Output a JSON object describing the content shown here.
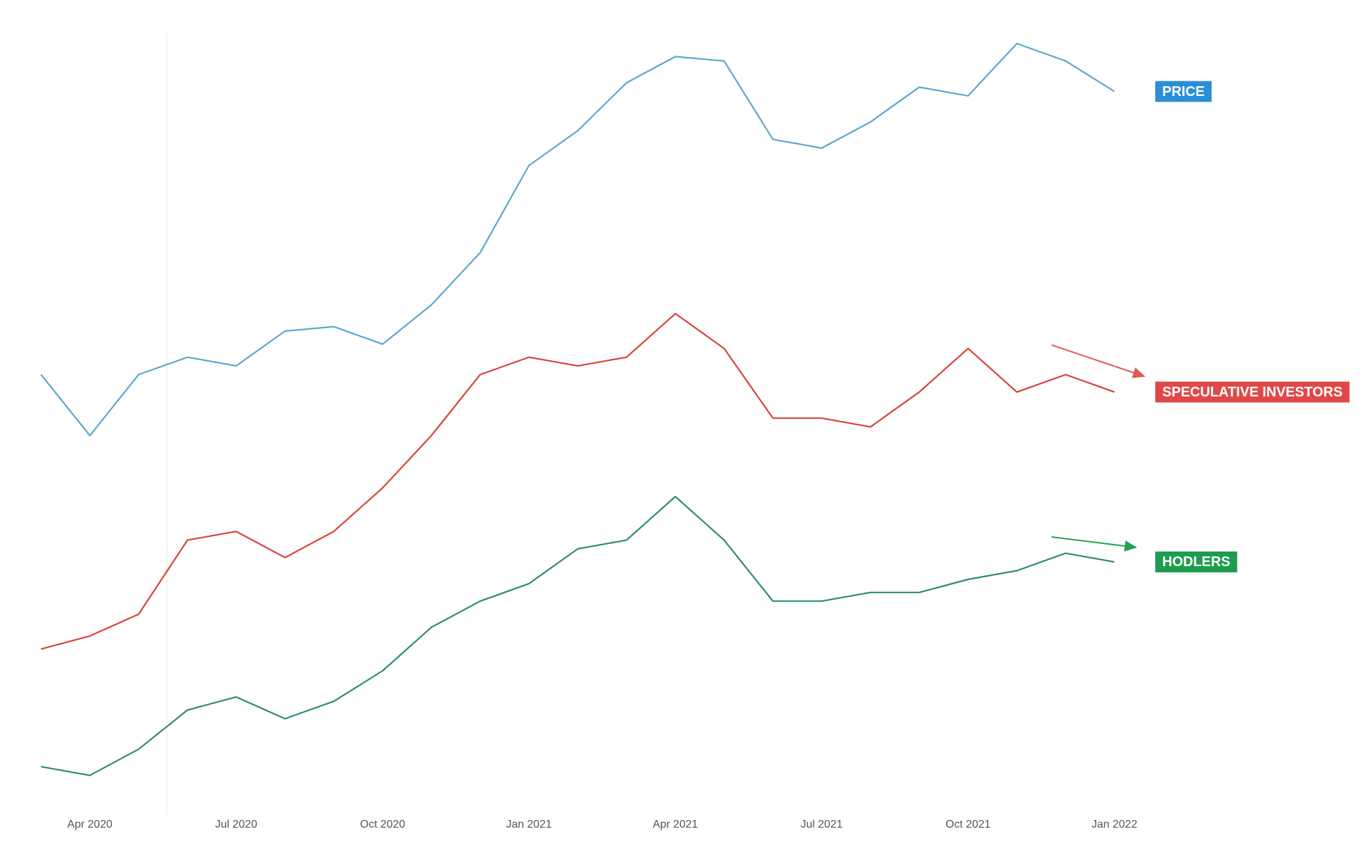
{
  "chart_data": {
    "type": "line",
    "x": [
      "Mar 2020",
      "Apr 2020",
      "May 2020",
      "Jun 2020",
      "Jul 2020",
      "Aug 2020",
      "Sep 2020",
      "Oct 2020",
      "Nov 2020",
      "Dec 2020",
      "Jan 2021",
      "Feb 2021",
      "Mar 2021",
      "Apr 2021",
      "May 2021",
      "Jun 2021",
      "Jul 2021",
      "Aug 2021",
      "Sep 2021",
      "Oct 2021",
      "Nov 2021",
      "Dec 2021",
      "Jan 2022"
    ],
    "xticks": [
      "Apr 2020",
      "Jul 2020",
      "Oct 2020",
      "Jan 2021",
      "Apr 2021",
      "Jul 2021",
      "Oct 2021",
      "Jan 2022"
    ],
    "ylim": [
      0,
      900
    ],
    "grid": false,
    "series": [
      {
        "name": "PRICE",
        "color": "#5aa6cc",
        "label_color": "#2a8fd6",
        "values": [
          490,
          420,
          490,
          510,
          500,
          540,
          545,
          525,
          570,
          630,
          730,
          770,
          825,
          855,
          850,
          760,
          750,
          780,
          820,
          810,
          870,
          850,
          815
        ]
      },
      {
        "name": "SPECULATIVE INVESTORS",
        "color": "#d9413a",
        "label_color": "#e04848",
        "values": [
          175,
          190,
          215,
          300,
          310,
          280,
          310,
          360,
          420,
          490,
          510,
          500,
          510,
          560,
          520,
          440,
          440,
          430,
          470,
          520,
          470,
          490,
          470
        ]
      },
      {
        "name": "HODLERS",
        "color": "#2e8a73",
        "label_color": "#1f9d4f",
        "values": [
          40,
          30,
          60,
          105,
          120,
          95,
          115,
          150,
          200,
          230,
          250,
          290,
          300,
          350,
          300,
          230,
          230,
          240,
          240,
          255,
          265,
          285,
          275
        ]
      }
    ]
  }
}
